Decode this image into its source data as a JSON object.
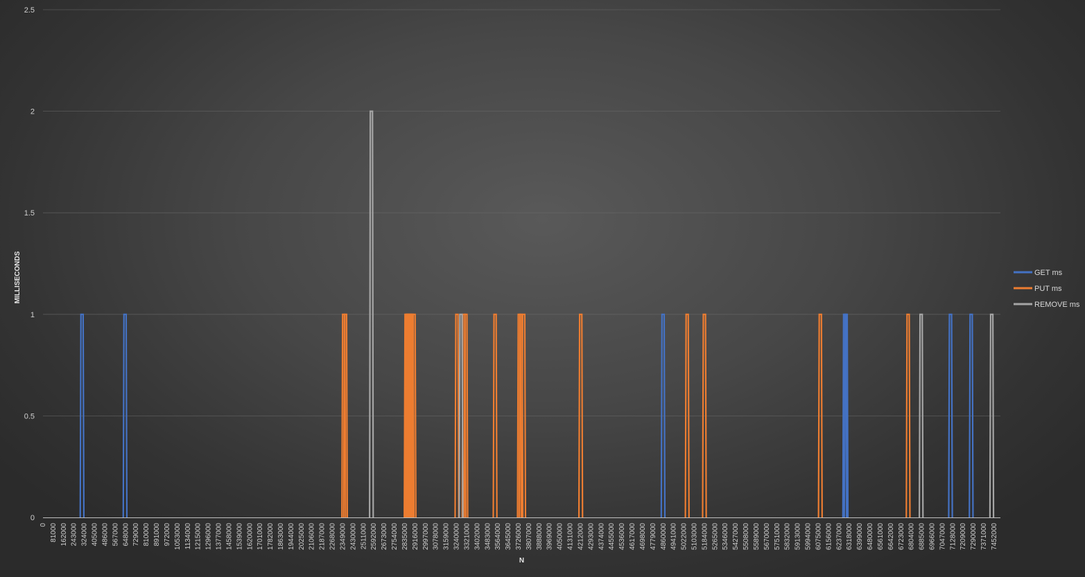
{
  "chart_data": {
    "type": "line",
    "title": "",
    "xlabel": "N",
    "ylabel": "MILLISECONDS",
    "ylim": [
      0,
      2.5
    ],
    "yticks": [
      "0",
      "0.5",
      "1",
      "1.5",
      "2",
      "2.5"
    ],
    "x_tick_labels": [
      "0",
      "81000",
      "162000",
      "243000",
      "324000",
      "405000",
      "486000",
      "567000",
      "648000",
      "729000",
      "810000",
      "891000",
      "972000",
      "1053000",
      "1134000",
      "1215000",
      "1296000",
      "1377000",
      "1458000",
      "1539000",
      "1620000",
      "1701000",
      "1782000",
      "1863000",
      "1944000",
      "2025000",
      "2106000",
      "2187000",
      "2268000",
      "2349000",
      "2430000",
      "2511000",
      "2592000",
      "2673000",
      "2754000",
      "2835000",
      "2916000",
      "2997000",
      "3078000",
      "3159000",
      "3240000",
      "3321000",
      "3402000",
      "3483000",
      "3564000",
      "3645000",
      "3726000",
      "3807000",
      "3888000",
      "3969000",
      "4050000",
      "4131000",
      "4212000",
      "4293000",
      "4374000",
      "4455000",
      "4536000",
      "4617000",
      "4698000",
      "4779000",
      "4860000",
      "4941000",
      "5022000",
      "5103000",
      "5184000",
      "5265000",
      "5346000",
      "5427000",
      "5508000",
      "5589000",
      "5670000",
      "5751000",
      "5832000",
      "5913000",
      "5994000",
      "6075000",
      "6156000",
      "6237000",
      "6318000",
      "6399000",
      "6480000",
      "6561000",
      "6642000",
      "6723000",
      "6804000",
      "6885000",
      "6966000",
      "7047000",
      "7128000",
      "7209000",
      "7290000",
      "7371000",
      "7452000"
    ],
    "x_range": [
      0,
      7501000
    ],
    "gridlines": true,
    "legend_position": "right",
    "series": [
      {
        "name": "GET ms",
        "color": "#4472c4",
        "spikes": [
          {
            "x": 306000,
            "y": 1
          },
          {
            "x": 643000,
            "y": 1
          },
          {
            "x": 4858000,
            "y": 1
          },
          {
            "x": 6281000,
            "y": 1
          },
          {
            "x": 6292000,
            "y": 1
          },
          {
            "x": 7110000,
            "y": 1
          },
          {
            "x": 7272000,
            "y": 1
          }
        ]
      },
      {
        "name": "PUT ms",
        "color": "#ed7d31",
        "spikes": [
          {
            "x": 2356000,
            "y": 1
          },
          {
            "x": 2370000,
            "y": 1
          },
          {
            "x": 2845000,
            "y": 1
          },
          {
            "x": 2853000,
            "y": 1
          },
          {
            "x": 2860000,
            "y": 1
          },
          {
            "x": 2868000,
            "y": 1
          },
          {
            "x": 2876000,
            "y": 1
          },
          {
            "x": 2884000,
            "y": 1
          },
          {
            "x": 2892000,
            "y": 1
          },
          {
            "x": 2907000,
            "y": 1
          },
          {
            "x": 3243000,
            "y": 1
          },
          {
            "x": 3298000,
            "y": 1
          },
          {
            "x": 3313000,
            "y": 1
          },
          {
            "x": 3542000,
            "y": 1
          },
          {
            "x": 3732000,
            "y": 1
          },
          {
            "x": 3745000,
            "y": 1
          },
          {
            "x": 3766000,
            "y": 1
          },
          {
            "x": 4213000,
            "y": 1
          },
          {
            "x": 5047000,
            "y": 1
          },
          {
            "x": 5182000,
            "y": 1
          },
          {
            "x": 6090000,
            "y": 1
          },
          {
            "x": 6778000,
            "y": 1
          }
        ]
      },
      {
        "name": "REMOVE ms",
        "color": "#a5a5a5",
        "spikes": [
          {
            "x": 2573000,
            "y": 2
          },
          {
            "x": 3275000,
            "y": 1
          },
          {
            "x": 6880000,
            "y": 1
          },
          {
            "x": 7433000,
            "y": 1
          }
        ]
      }
    ]
  }
}
